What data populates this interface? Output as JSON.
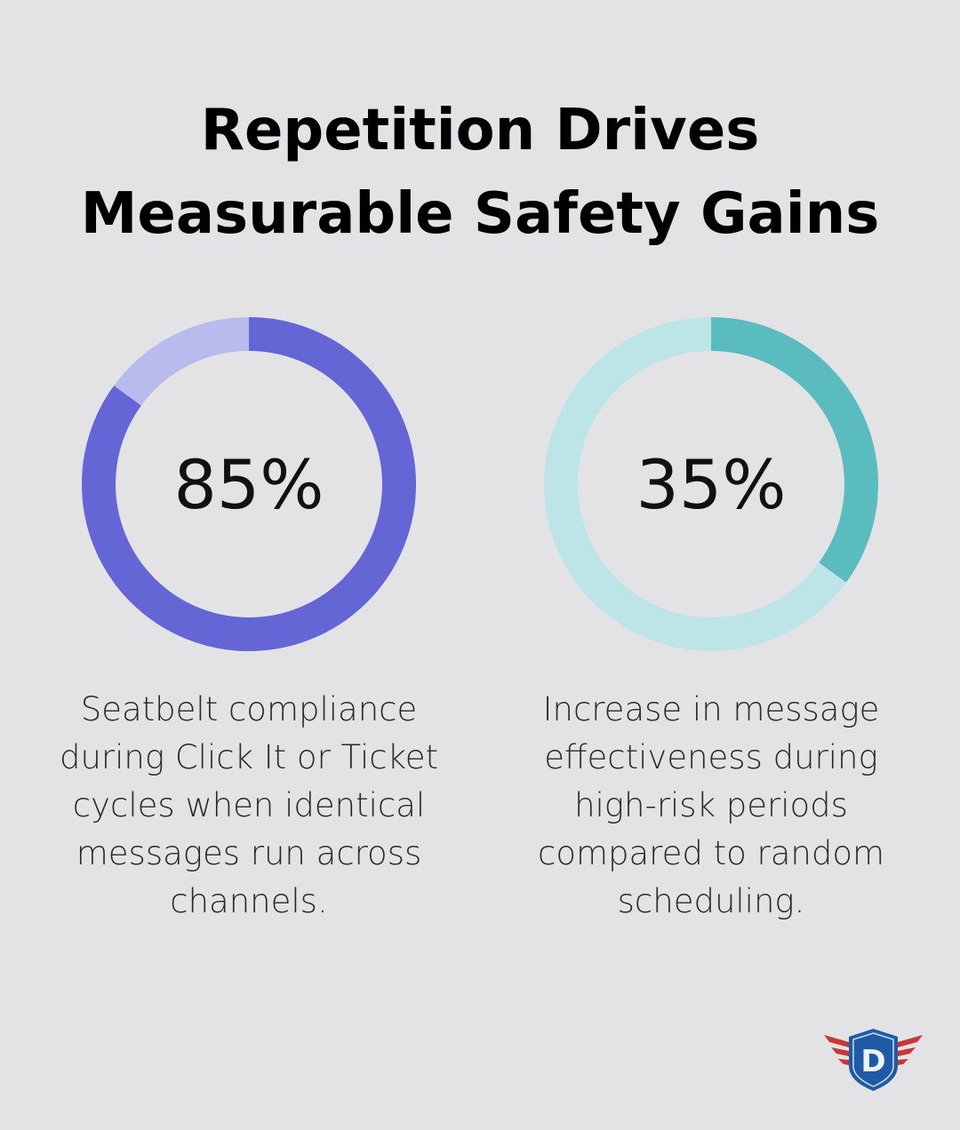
{
  "title_line1": "Repetition Drives",
  "title_line2": "Measurable Safety Gains",
  "chart_data": [
    {
      "type": "pie",
      "variant": "donut",
      "values": [
        85,
        15
      ],
      "label": "85%",
      "description": "Seatbelt compliance during Click It or Ticket cycles when identical messages run across channels.",
      "colors": {
        "fill": "#6466d6",
        "track": "#b9baed"
      }
    },
    {
      "type": "pie",
      "variant": "donut",
      "values": [
        35,
        65
      ],
      "label": "35%",
      "description": "Increase in message effectiveness during high-risk periods compared to random scheduling.",
      "colors": {
        "fill": "#5bbcc0",
        "track": "#bde4e6"
      }
    }
  ],
  "logo": {
    "text": "D",
    "icon": "winged-shield-logo",
    "colors": {
      "shield": "#1f5aa6",
      "wings": "#c7373a"
    }
  }
}
